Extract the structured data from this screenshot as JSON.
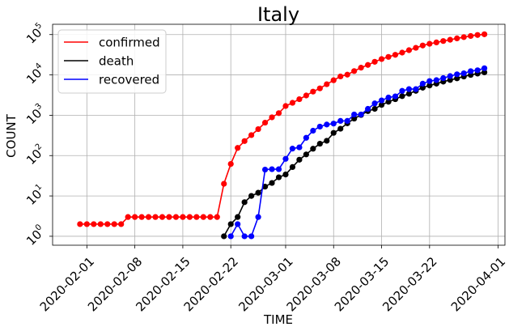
{
  "chart_data": {
    "type": "line",
    "title": "Italy",
    "xlabel": "TIME",
    "ylabel": "COUNT",
    "yscale": "log",
    "ylim": [
      0.6,
      180000
    ],
    "xlim": [
      "2020-01-27",
      "2020-04-02"
    ],
    "grid": true,
    "legend_position": "top-left",
    "x_ticks": [
      "2020-02-01",
      "2020-02-08",
      "2020-02-15",
      "2020-02-22",
      "2020-03-01",
      "2020-03-08",
      "2020-03-15",
      "2020-03-22",
      "2020-04-01"
    ],
    "y_ticks": [
      {
        "value": 1,
        "base": "10",
        "exp": "0"
      },
      {
        "value": 10,
        "base": "10",
        "exp": "1"
      },
      {
        "value": 100,
        "base": "10",
        "exp": "2"
      },
      {
        "value": 1000,
        "base": "10",
        "exp": "3"
      },
      {
        "value": 10000,
        "base": "10",
        "exp": "4"
      },
      {
        "value": 100000,
        "base": "10",
        "exp": "5"
      }
    ],
    "series": [
      {
        "name": "confirmed",
        "color": "#ff0000",
        "points": [
          [
            "2020-01-31",
            2
          ],
          [
            "2020-02-01",
            2
          ],
          [
            "2020-02-02",
            2
          ],
          [
            "2020-02-03",
            2
          ],
          [
            "2020-02-04",
            2
          ],
          [
            "2020-02-05",
            2
          ],
          [
            "2020-02-06",
            2
          ],
          [
            "2020-02-07",
            3
          ],
          [
            "2020-02-08",
            3
          ],
          [
            "2020-02-09",
            3
          ],
          [
            "2020-02-10",
            3
          ],
          [
            "2020-02-11",
            3
          ],
          [
            "2020-02-12",
            3
          ],
          [
            "2020-02-13",
            3
          ],
          [
            "2020-02-14",
            3
          ],
          [
            "2020-02-15",
            3
          ],
          [
            "2020-02-16",
            3
          ],
          [
            "2020-02-17",
            3
          ],
          [
            "2020-02-18",
            3
          ],
          [
            "2020-02-19",
            3
          ],
          [
            "2020-02-20",
            3
          ],
          [
            "2020-02-21",
            20
          ],
          [
            "2020-02-22",
            62
          ],
          [
            "2020-02-23",
            155
          ],
          [
            "2020-02-24",
            229
          ],
          [
            "2020-02-25",
            322
          ],
          [
            "2020-02-26",
            453
          ],
          [
            "2020-02-27",
            655
          ],
          [
            "2020-02-28",
            888
          ],
          [
            "2020-02-29",
            1128
          ],
          [
            "2020-03-01",
            1694
          ],
          [
            "2020-03-02",
            2036
          ],
          [
            "2020-03-03",
            2502
          ],
          [
            "2020-03-04",
            3089
          ],
          [
            "2020-03-05",
            3858
          ],
          [
            "2020-03-06",
            4636
          ],
          [
            "2020-03-07",
            5883
          ],
          [
            "2020-03-08",
            7375
          ],
          [
            "2020-03-09",
            9172
          ],
          [
            "2020-03-10",
            10149
          ],
          [
            "2020-03-11",
            12462
          ],
          [
            "2020-03-12",
            15113
          ],
          [
            "2020-03-13",
            17660
          ],
          [
            "2020-03-14",
            21157
          ],
          [
            "2020-03-15",
            24747
          ],
          [
            "2020-03-16",
            27980
          ],
          [
            "2020-03-17",
            31506
          ],
          [
            "2020-03-18",
            35713
          ],
          [
            "2020-03-19",
            41035
          ],
          [
            "2020-03-20",
            47021
          ],
          [
            "2020-03-21",
            53578
          ],
          [
            "2020-03-22",
            59138
          ],
          [
            "2020-03-23",
            63927
          ],
          [
            "2020-03-24",
            69176
          ],
          [
            "2020-03-25",
            74386
          ],
          [
            "2020-03-26",
            80589
          ],
          [
            "2020-03-27",
            86498
          ],
          [
            "2020-03-28",
            92472
          ],
          [
            "2020-03-29",
            97689
          ],
          [
            "2020-03-30",
            101739
          ]
        ]
      },
      {
        "name": "death",
        "color": "#000000",
        "points": [
          [
            "2020-02-21",
            1
          ],
          [
            "2020-02-22",
            2
          ],
          [
            "2020-02-23",
            3
          ],
          [
            "2020-02-24",
            7
          ],
          [
            "2020-02-25",
            10
          ],
          [
            "2020-02-26",
            12
          ],
          [
            "2020-02-27",
            17
          ],
          [
            "2020-02-28",
            21
          ],
          [
            "2020-02-29",
            29
          ],
          [
            "2020-03-01",
            34
          ],
          [
            "2020-03-02",
            52
          ],
          [
            "2020-03-03",
            79
          ],
          [
            "2020-03-04",
            107
          ],
          [
            "2020-03-05",
            148
          ],
          [
            "2020-03-06",
            197
          ],
          [
            "2020-03-07",
            233
          ],
          [
            "2020-03-08",
            366
          ],
          [
            "2020-03-09",
            463
          ],
          [
            "2020-03-10",
            631
          ],
          [
            "2020-03-11",
            827
          ],
          [
            "2020-03-12",
            1016
          ],
          [
            "2020-03-13",
            1266
          ],
          [
            "2020-03-14",
            1441
          ],
          [
            "2020-03-15",
            1809
          ],
          [
            "2020-03-16",
            2158
          ],
          [
            "2020-03-17",
            2503
          ],
          [
            "2020-03-18",
            2978
          ],
          [
            "2020-03-19",
            3405
          ],
          [
            "2020-03-20",
            4032
          ],
          [
            "2020-03-21",
            4825
          ],
          [
            "2020-03-22",
            5476
          ],
          [
            "2020-03-23",
            6077
          ],
          [
            "2020-03-24",
            6820
          ],
          [
            "2020-03-25",
            7503
          ],
          [
            "2020-03-26",
            8215
          ],
          [
            "2020-03-27",
            9134
          ],
          [
            "2020-03-28",
            10023
          ],
          [
            "2020-03-29",
            10779
          ],
          [
            "2020-03-30",
            11591
          ]
        ]
      },
      {
        "name": "recovered",
        "color": "#0000ff",
        "points": [
          [
            "2020-02-22",
            1
          ],
          [
            "2020-02-23",
            2
          ],
          [
            "2020-02-24",
            1
          ],
          [
            "2020-02-25",
            1
          ],
          [
            "2020-02-26",
            3
          ],
          [
            "2020-02-27",
            45
          ],
          [
            "2020-02-28",
            46
          ],
          [
            "2020-02-29",
            46
          ],
          [
            "2020-03-01",
            83
          ],
          [
            "2020-03-02",
            149
          ],
          [
            "2020-03-03",
            160
          ],
          [
            "2020-03-04",
            276
          ],
          [
            "2020-03-05",
            414
          ],
          [
            "2020-03-06",
            523
          ],
          [
            "2020-03-07",
            589
          ],
          [
            "2020-03-08",
            622
          ],
          [
            "2020-03-09",
            724
          ],
          [
            "2020-03-10",
            724
          ],
          [
            "2020-03-11",
            1045
          ],
          [
            "2020-03-12",
            1045
          ],
          [
            "2020-03-13",
            1439
          ],
          [
            "2020-03-14",
            1966
          ],
          [
            "2020-03-15",
            2335
          ],
          [
            "2020-03-16",
            2749
          ],
          [
            "2020-03-17",
            2941
          ],
          [
            "2020-03-18",
            4025
          ],
          [
            "2020-03-19",
            4440
          ],
          [
            "2020-03-20",
            4440
          ],
          [
            "2020-03-21",
            6072
          ],
          [
            "2020-03-22",
            7024
          ],
          [
            "2020-03-23",
            7432
          ],
          [
            "2020-03-24",
            8326
          ],
          [
            "2020-03-25",
            9362
          ],
          [
            "2020-03-26",
            10361
          ],
          [
            "2020-03-27",
            10950
          ],
          [
            "2020-03-28",
            12384
          ],
          [
            "2020-03-29",
            13030
          ],
          [
            "2020-03-30",
            14620
          ]
        ]
      }
    ]
  }
}
